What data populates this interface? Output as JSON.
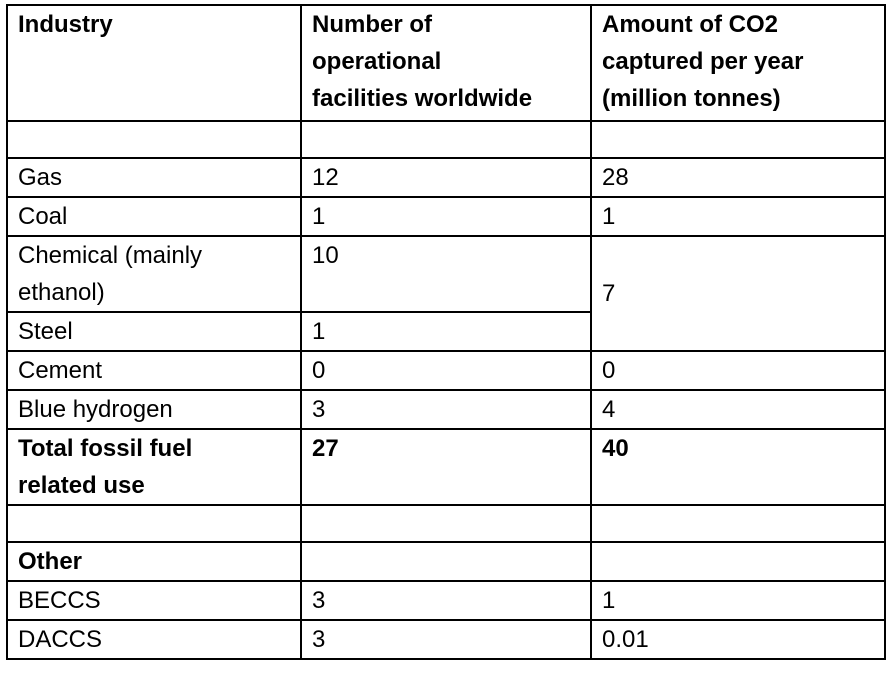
{
  "table": {
    "header": {
      "industry": "Industry",
      "facilities": [
        "Number of",
        "operational",
        "facilities worldwide"
      ],
      "co2": [
        "Amount of CO2",
        "captured per year",
        "(million tonnes)"
      ]
    },
    "rows": {
      "gas": {
        "industry": "Gas",
        "facilities": "12",
        "co2": "28"
      },
      "coal": {
        "industry": "Coal",
        "facilities": "1",
        "co2": "1"
      },
      "chemical": {
        "industry": [
          "Chemical (mainly",
          "ethanol)"
        ],
        "facilities": "10"
      },
      "chemical_steel_co2": "7",
      "steel": {
        "industry": "Steel",
        "facilities": "1"
      },
      "cement": {
        "industry": "Cement",
        "facilities": "0",
        "co2": "0"
      },
      "blue_hydrogen": {
        "industry": "Blue hydrogen",
        "facilities": "3",
        "co2": "4"
      },
      "total": {
        "industry": [
          "Total fossil fuel",
          "related use"
        ],
        "facilities": "27",
        "co2": "40"
      },
      "other_heading": "Other",
      "beccs": {
        "industry": "BECCS",
        "facilities": "3",
        "co2": "1"
      },
      "daccs": {
        "industry": "DACCS",
        "facilities": "3",
        "co2": "0.01"
      }
    }
  }
}
